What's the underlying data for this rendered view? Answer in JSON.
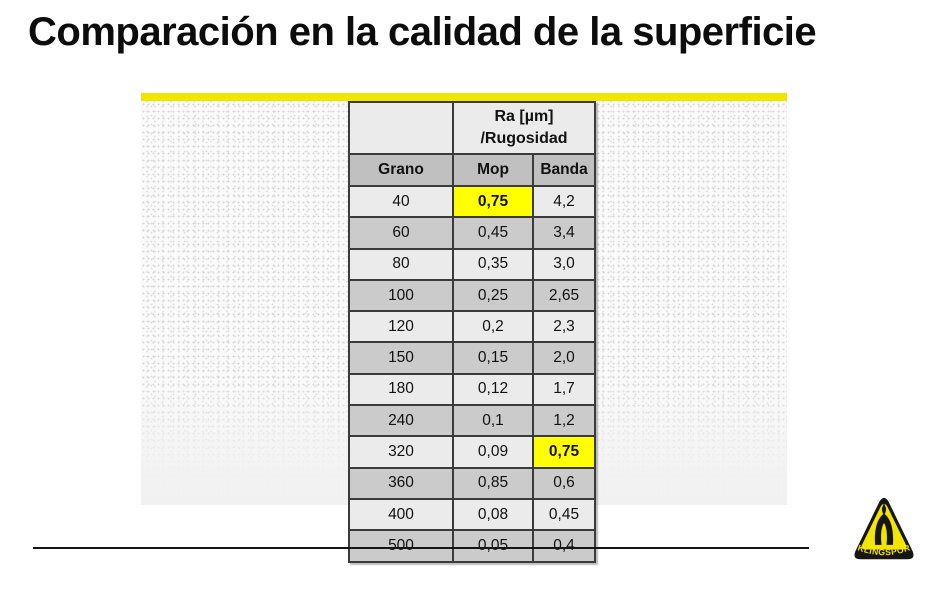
{
  "page": {
    "title": "Comparación en la calidad de la superficie"
  },
  "table": {
    "group_header": {
      "line1": "Ra [µm]",
      "line2": "/Rugosidad"
    },
    "columns": [
      "Grano",
      "Mop",
      "Banda"
    ],
    "rows": [
      {
        "grano": "40",
        "mop": "0,75",
        "banda": "4,2",
        "highlight": "mop"
      },
      {
        "grano": "60",
        "mop": "0,45",
        "banda": "3,4"
      },
      {
        "grano": "80",
        "mop": "0,35",
        "banda": "3,0"
      },
      {
        "grano": "100",
        "mop": "0,25",
        "banda": "2,65"
      },
      {
        "grano": "120",
        "mop": "0,2",
        "banda": "2,3"
      },
      {
        "grano": "150",
        "mop": "0,15",
        "banda": "2,0"
      },
      {
        "grano": "180",
        "mop": "0,12",
        "banda": "1,7"
      },
      {
        "grano": "240",
        "mop": "0,1",
        "banda": "1,2"
      },
      {
        "grano": "320",
        "mop": "0,09",
        "banda": "0,75",
        "highlight": "banda"
      },
      {
        "grano": "360",
        "mop": "0,85",
        "banda": "0,6"
      },
      {
        "grano": "400",
        "mop": "0,08",
        "banda": "0,45"
      },
      {
        "grano": "500",
        "mop": "0,05",
        "banda": "0,4"
      }
    ],
    "column_keys": [
      "grano",
      "mop",
      "banda"
    ]
  },
  "logo": {
    "brand": "KLINGSPOR"
  },
  "colors": {
    "accent_yellow": "#F2E500",
    "highlight_yellow": "#FFFF00",
    "row_light": "#EBEBEB",
    "row_dark": "#CBCBCB",
    "header_gray": "#C0C0C0",
    "border": "#3B3B3B",
    "logo_black": "#161616"
  }
}
